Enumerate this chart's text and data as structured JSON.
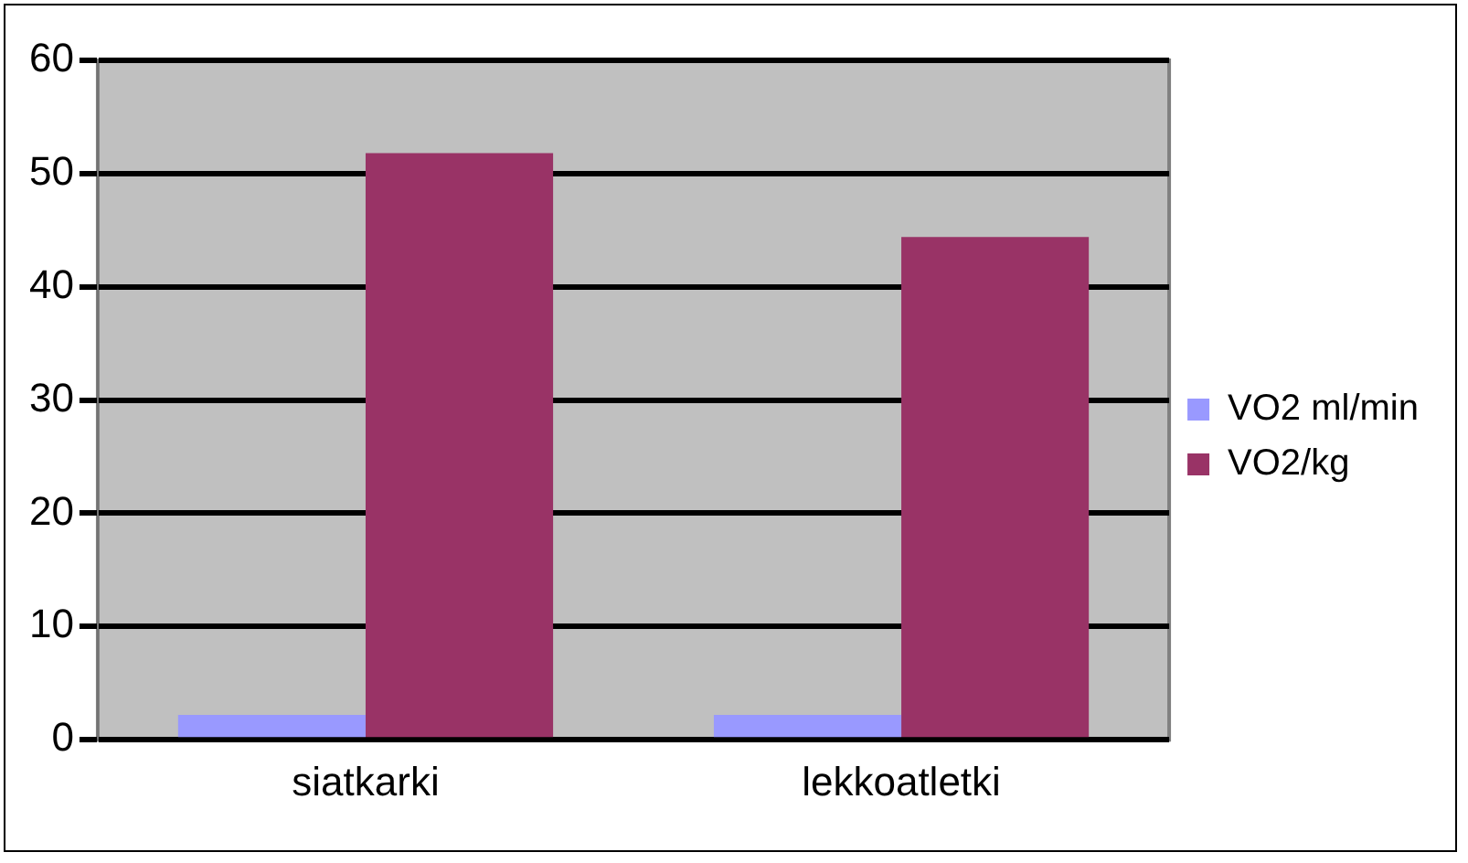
{
  "chart_data": {
    "type": "bar",
    "categories": [
      "siatkarki",
      "lekkoatletki"
    ],
    "series": [
      {
        "name": "VO2 ml/min",
        "color": "#9999ff",
        "values": [
          2.2,
          2.2
        ]
      },
      {
        "name": "VO2/kg",
        "color": "#993366",
        "values": [
          51.8,
          44.4
        ]
      }
    ],
    "ylim": [
      0,
      60
    ],
    "yticks": [
      0,
      10,
      20,
      30,
      40,
      50,
      60
    ],
    "grid": "y",
    "legend": "right"
  }
}
